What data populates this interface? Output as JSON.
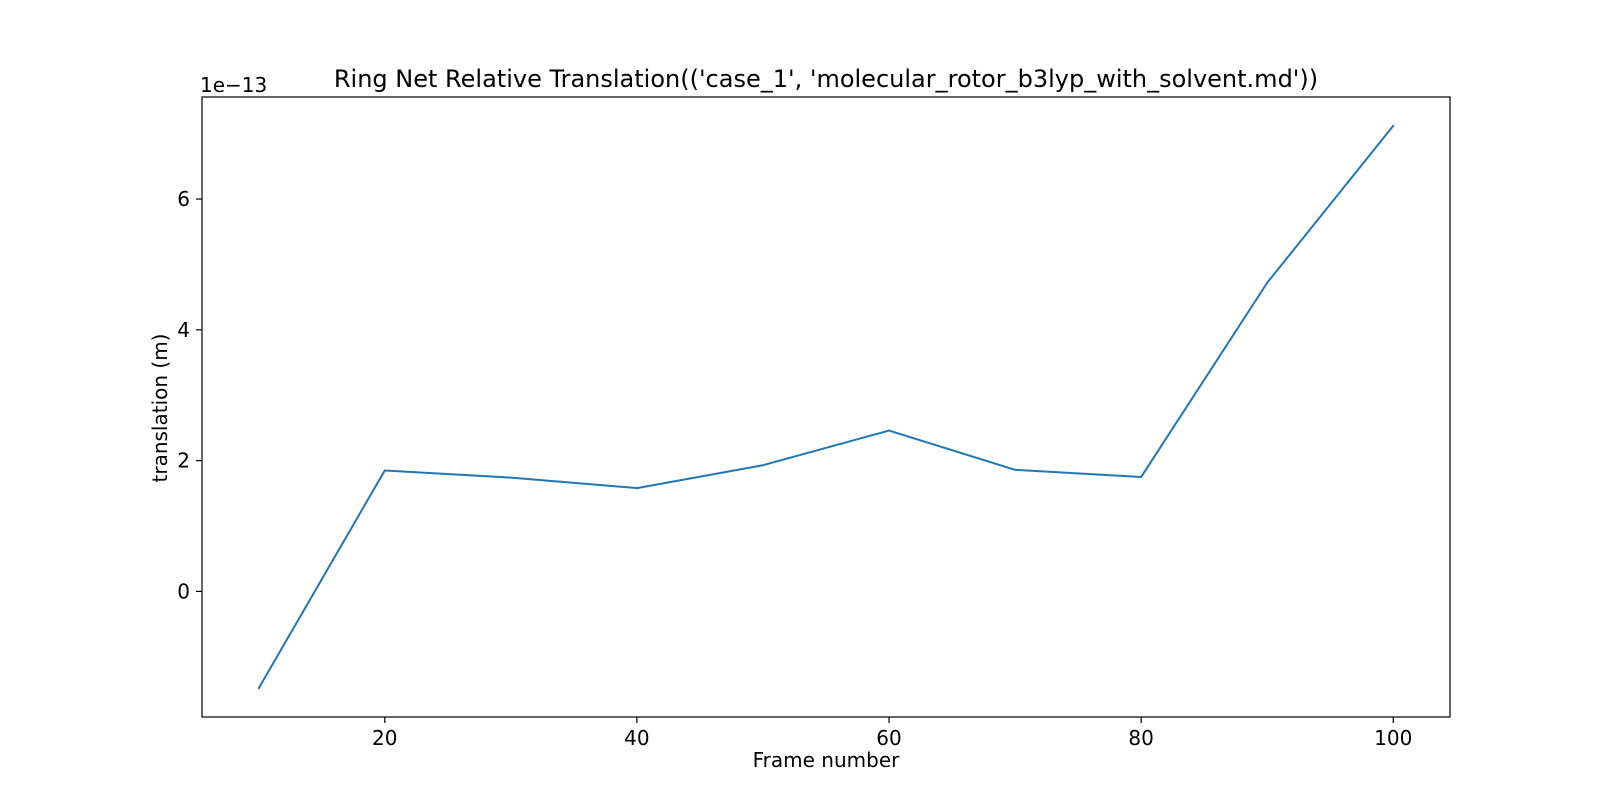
{
  "chart_data": {
    "type": "line",
    "title": "Ring Net Relative Translation(('case_1', 'molecular_rotor_b3lyp_with_solvent.md'))",
    "xlabel": "Frame number",
    "ylabel": "translation (m)",
    "y_offset_text": "1e−13",
    "x": [
      10,
      20,
      30,
      40,
      50,
      60,
      70,
      80,
      90,
      100
    ],
    "series": [
      {
        "color": "#1f77b4",
        "values": [
          -1.48,
          1.85,
          1.74,
          1.58,
          1.93,
          2.46,
          1.86,
          1.75,
          4.72,
          7.12
        ]
      }
    ],
    "xlim": [
      5.5,
      104.5
    ],
    "ylim": [
      -1.92,
      7.56
    ],
    "xticks": [
      20,
      40,
      60,
      80,
      100
    ],
    "xtick_labels": [
      "20",
      "40",
      "60",
      "80",
      "100"
    ],
    "yticks": [
      0,
      2,
      4,
      6
    ],
    "ytick_labels": [
      "0",
      "2",
      "4",
      "6"
    ],
    "grid": false,
    "legend": "none"
  }
}
